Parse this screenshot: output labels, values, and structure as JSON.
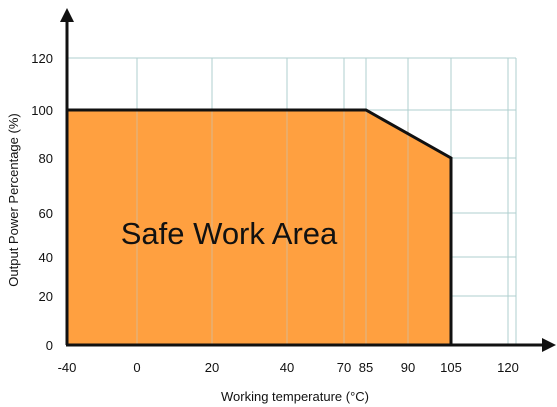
{
  "chart_data": {
    "type": "area",
    "xlabel": "Working temperature (°C)",
    "ylabel": "Output Power Percentage (%)",
    "x_ticks": [
      "-40",
      "0",
      "20",
      "40",
      "70",
      "85",
      "90",
      "105",
      "120"
    ],
    "y_ticks": [
      "0",
      "20",
      "40",
      "60",
      "80",
      "100",
      "120"
    ],
    "series": [
      {
        "x": [
          -40,
          85,
          105,
          105
        ],
        "y": [
          100,
          100,
          80,
          0
        ]
      }
    ],
    "annotation": "Safe Work Area",
    "grid": true,
    "fill_color": "#FFA040",
    "line_color": "#111111",
    "grid_color": "#AFCFCF"
  }
}
